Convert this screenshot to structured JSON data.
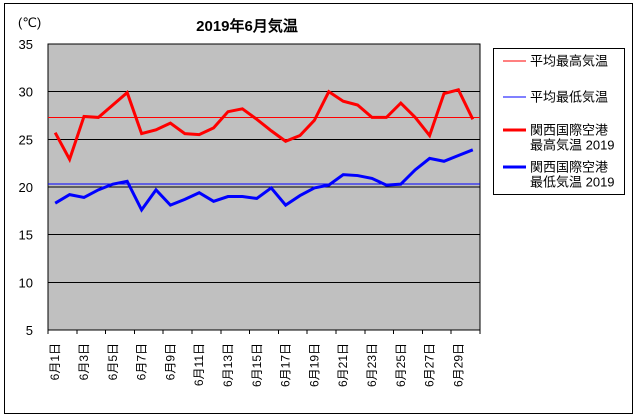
{
  "chart_data": {
    "type": "line",
    "title": "2019年6月気温",
    "y_unit": "(℃)",
    "plot_bg": "#c0c0c0",
    "grid_color": "#000000",
    "legend_position": "right",
    "x_label_step": 2,
    "y_axis": {
      "min": 5,
      "max": 35,
      "step": 5,
      "tick_labels": [
        "35",
        "30",
        "25",
        "20",
        "15",
        "10",
        "5"
      ]
    },
    "x_labels": [
      "6月1日",
      "6月3日",
      "6月5日",
      "6月7日",
      "6月9日",
      "6月11日",
      "6月13日",
      "6月15日",
      "6月17日",
      "6月19日",
      "6月21日",
      "6月23日",
      "6月25日",
      "6月27日",
      "6月29日"
    ],
    "series": [
      {
        "key": "avg-high",
        "name": "平均最高気温",
        "legend_lines": [
          "平均最高気温"
        ],
        "color": "#ff0000",
        "width": 1.2,
        "constant": 27.3
      },
      {
        "key": "avg-low",
        "name": "平均最低気温",
        "legend_lines": [
          "平均最低気温"
        ],
        "color": "#0000ff",
        "width": 1.2,
        "constant": 20.3
      },
      {
        "key": "kix-high-2019",
        "name": "関西国際空港最高気温 2019",
        "legend_lines": [
          "関西国際空港",
          "最高気温 2019"
        ],
        "color": "#ff0000",
        "width": 3,
        "values": [
          25.7,
          22.9,
          27.4,
          27.3,
          28.6,
          29.9,
          25.6,
          26.0,
          26.7,
          25.6,
          25.5,
          26.2,
          27.9,
          28.2,
          27.1,
          25.9,
          24.8,
          25.4,
          27.0,
          30.0,
          29.0,
          28.6,
          27.3,
          27.3,
          28.8,
          27.3,
          25.4,
          29.8,
          30.2,
          27.1
        ]
      },
      {
        "key": "kix-low-2019",
        "name": "関西国際空港最低気温 2019",
        "legend_lines": [
          "関西国際空港",
          "最低気温 2019"
        ],
        "color": "#0000ff",
        "width": 3,
        "values": [
          18.3,
          19.2,
          18.9,
          19.7,
          20.3,
          20.6,
          17.6,
          19.7,
          18.1,
          18.7,
          19.4,
          18.5,
          19.0,
          19.0,
          18.8,
          19.9,
          18.1,
          19.1,
          19.9,
          20.2,
          21.3,
          21.2,
          20.9,
          20.2,
          20.3,
          21.8,
          23.0,
          22.7,
          23.3,
          23.9
        ]
      }
    ]
  },
  "frame": {
    "border_color": "#000000",
    "background": "#ffffff"
  }
}
